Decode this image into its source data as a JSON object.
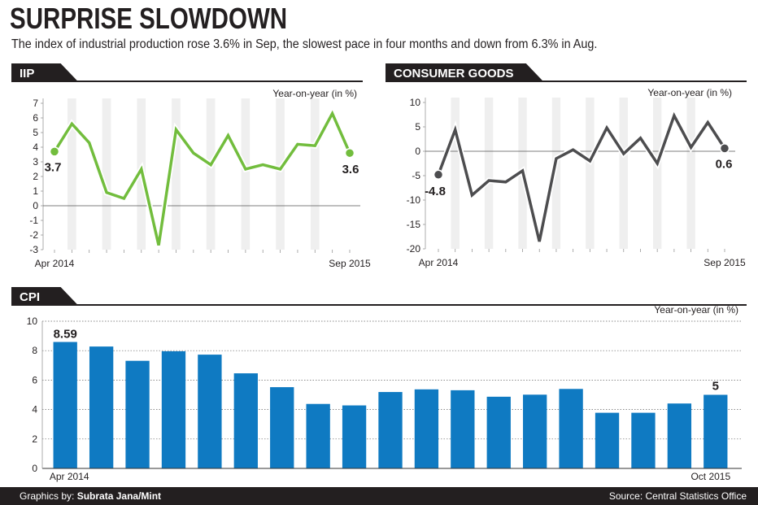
{
  "header": {
    "title": "SURPRISE SLOWDOWN",
    "subtitle": "The index of industrial production rose 3.6% in Sep, the slowest pace in four months and down from 6.3% in Aug."
  },
  "footer": {
    "credit_prefix": "Graphics by: ",
    "credit_name": "Subrata Jana/Mint",
    "source": "Source: Central Statistics Office"
  },
  "colors": {
    "iip": "#72bd3d",
    "consumer": "#4d4d4f",
    "cpi": "#0f7ac2",
    "band": "#efefef",
    "dark": "#231f20"
  },
  "chart_data": [
    {
      "id": "iip",
      "type": "line",
      "title": "IIP",
      "ylabel": "Year-on-year (in %)",
      "x_start_label": "Apr 2014",
      "x_end_label": "Sep 2015",
      "ylim": [
        -3,
        7
      ],
      "yticks": [
        -3,
        -2,
        -1,
        0,
        1,
        2,
        3,
        4,
        5,
        6,
        7
      ],
      "values": [
        3.7,
        5.6,
        4.3,
        0.9,
        0.5,
        2.5,
        -2.7,
        5.2,
        3.6,
        2.8,
        4.8,
        2.5,
        2.8,
        2.5,
        4.2,
        4.1,
        6.3,
        3.6
      ],
      "first_label": "3.7",
      "last_label": "3.6"
    },
    {
      "id": "consumer",
      "type": "line",
      "title": "CONSUMER GOODS",
      "ylabel": "Year-on-year (in %)",
      "x_start_label": "Apr 2014",
      "x_end_label": "Sep 2015",
      "ylim": [
        -20,
        10
      ],
      "yticks": [
        -20,
        -15,
        -10,
        -5,
        0,
        5,
        10
      ],
      "values": [
        -4.8,
        4.4,
        -9,
        -6,
        -6.3,
        -4,
        -18.5,
        -1.5,
        0.3,
        -2,
        4.8,
        -0.5,
        2.7,
        -2.5,
        7.3,
        0.8,
        5.9,
        0.6
      ],
      "first_label": "-4.8",
      "last_label": "0.6"
    },
    {
      "id": "cpi",
      "type": "bar",
      "title": "CPI",
      "ylabel": "Year-on-year (in %)",
      "x_start_label": "Apr 2014",
      "x_end_label": "Oct 2015",
      "ylim": [
        0,
        10
      ],
      "yticks": [
        0,
        2,
        4,
        6,
        8,
        10
      ],
      "values": [
        8.59,
        8.28,
        7.31,
        7.96,
        7.73,
        6.46,
        5.52,
        4.38,
        4.28,
        5.19,
        5.37,
        5.31,
        4.87,
        5.01,
        5.4,
        3.78,
        3.78,
        4.41,
        5
      ],
      "first_label": "8.59",
      "last_label": "5"
    }
  ]
}
